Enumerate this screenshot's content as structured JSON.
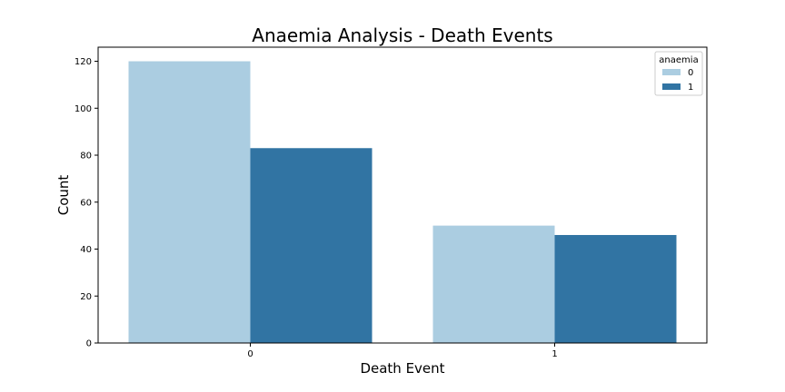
{
  "chart_data": {
    "type": "bar",
    "title": "Anaemia Analysis - Death Events",
    "xlabel": "Death Event",
    "ylabel": "Count",
    "categories": [
      "0",
      "1"
    ],
    "series": [
      {
        "name": "0",
        "values": [
          120,
          50
        ],
        "color": "#abcde1"
      },
      {
        "name": "1",
        "values": [
          83,
          46
        ],
        "color": "#3174a3"
      }
    ],
    "ylim": [
      0,
      126
    ],
    "yticks": [
      0,
      20,
      40,
      60,
      80,
      100,
      120
    ],
    "legend": {
      "title": "anaemia",
      "placement": "top-right"
    },
    "grid": false
  }
}
